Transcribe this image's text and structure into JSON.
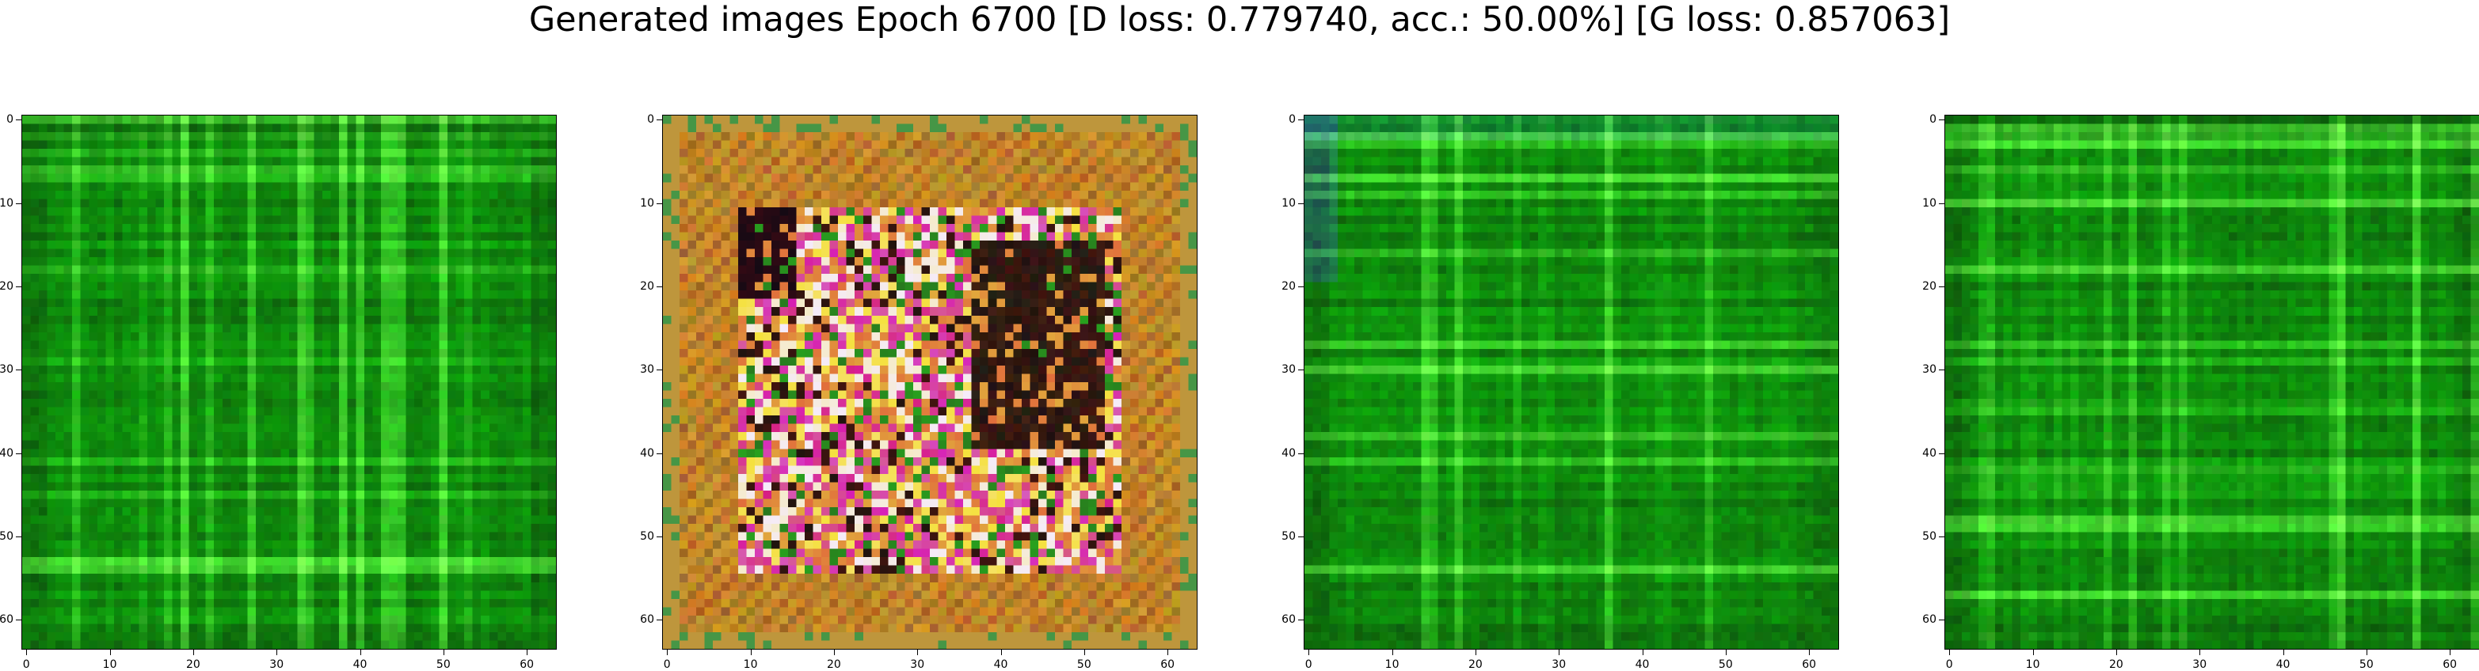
{
  "figure": {
    "title": "Generated images Epoch 6700 [D loss: 0.779740, acc.: 50.00%] [G loss: 0.857063]"
  },
  "chart_data": [
    {
      "type": "heatmap",
      "description": "generated RGB image, predominantly green with bright green horizontal/vertical streak artifacts",
      "dominant_colors": [
        "#0d7a0d",
        "#1e9e1e",
        "#5fd35f",
        "#053d05"
      ],
      "xlim": [
        -0.5,
        63.5
      ],
      "ylim": [
        63.5,
        -0.5
      ],
      "xticks": [
        0,
        10,
        20,
        30,
        40,
        50,
        60
      ],
      "yticks": [
        0,
        10,
        20,
        30,
        40,
        50,
        60
      ],
      "grid": false
    },
    {
      "type": "heatmap",
      "description": "generated RGB image, orange/ochre background with magenta, yellow, black and white blotches in the center",
      "dominant_colors": [
        "#c8891e",
        "#e0a93a",
        "#d4197a",
        "#1a0d05",
        "#f4e05a"
      ],
      "xlim": [
        -0.5,
        63.5
      ],
      "ylim": [
        63.5,
        -0.5
      ],
      "xticks": [
        0,
        10,
        20,
        30,
        40,
        50,
        60
      ],
      "yticks": [
        0,
        10,
        20,
        30,
        40,
        50,
        60
      ],
      "grid": false
    },
    {
      "type": "heatmap",
      "description": "generated RGB image, predominantly green with lighter green streaks and a teal tint at top-left",
      "dominant_colors": [
        "#137d13",
        "#2aa82a",
        "#62cf62",
        "#0f5a4a"
      ],
      "xlim": [
        -0.5,
        63.5
      ],
      "ylim": [
        63.5,
        -0.5
      ],
      "xticks": [
        0,
        10,
        20,
        30,
        40,
        50,
        60
      ],
      "yticks": [
        0,
        10,
        20,
        30,
        40,
        50,
        60
      ],
      "grid": false
    },
    {
      "type": "heatmap",
      "description": "generated RGB image, predominantly green with bright green streak artifacts (near duplicate of panel 1)",
      "dominant_colors": [
        "#0d7a0d",
        "#1e9e1e",
        "#5fd35f",
        "#053d05"
      ],
      "xlim": [
        -0.5,
        63.5
      ],
      "ylim": [
        63.5,
        -0.5
      ],
      "xticks": [
        0,
        10,
        20,
        30,
        40,
        50,
        60
      ],
      "yticks": [
        0,
        10,
        20,
        30,
        40,
        50,
        60
      ],
      "grid": false
    }
  ]
}
